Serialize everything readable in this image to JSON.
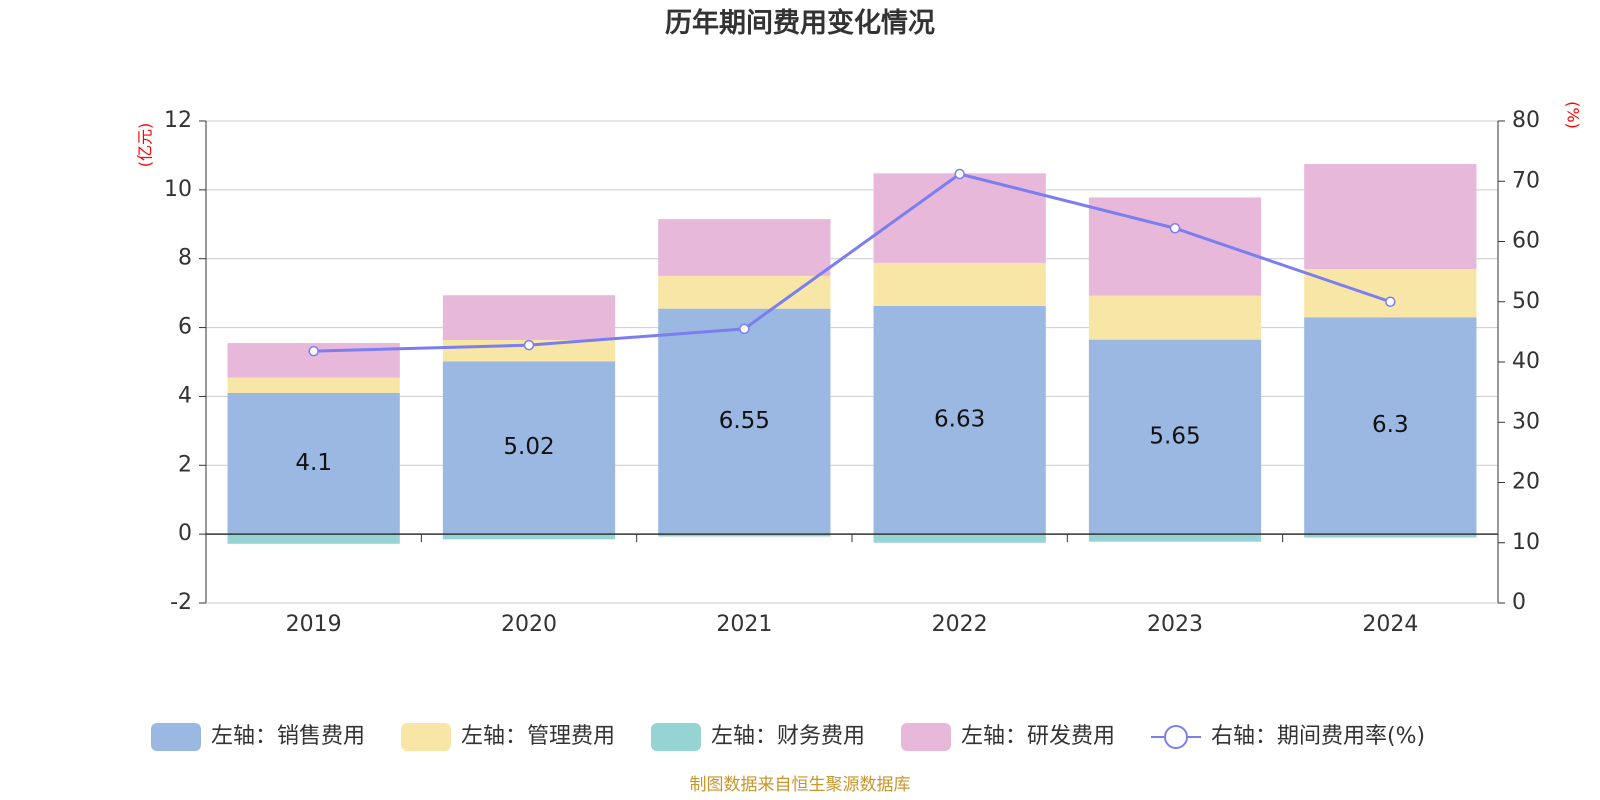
{
  "chart_data": {
    "type": "bar",
    "stacked": true,
    "title": "历年期间费用变化情况",
    "left_axis": {
      "unit": "(亿元)",
      "ylim": [
        -2,
        12
      ],
      "ticks": [
        -2,
        0,
        2,
        4,
        6,
        8,
        10,
        12
      ]
    },
    "right_axis": {
      "unit": "(%)",
      "ylim": [
        0,
        80
      ],
      "ticks": [
        0,
        10,
        20,
        30,
        40,
        50,
        60,
        70,
        80
      ]
    },
    "categories": [
      "2019",
      "2020",
      "2021",
      "2022",
      "2023",
      "2024"
    ],
    "series": [
      {
        "name": "左轴：销售费用",
        "axis": "left",
        "color": "#9bb8e2",
        "values": [
          4.1,
          5.02,
          6.55,
          6.63,
          5.65,
          6.3
        ],
        "labels": [
          "4.1",
          "5.02",
          "6.55",
          "6.63",
          "5.65",
          "6.3"
        ]
      },
      {
        "name": "左轴：管理费用",
        "axis": "left",
        "color": "#f8e6a6",
        "values": [
          0.45,
          0.62,
          0.95,
          1.25,
          1.28,
          1.4
        ]
      },
      {
        "name": "左轴：财务费用",
        "axis": "left",
        "color": "#96d4d4",
        "values": [
          -0.28,
          -0.15,
          -0.07,
          -0.25,
          -0.22,
          -0.1
        ]
      },
      {
        "name": "左轴：研发费用",
        "axis": "left",
        "color": "#e8b8da",
        "values": [
          1.0,
          1.3,
          1.65,
          2.6,
          2.85,
          3.05
        ]
      },
      {
        "name": "右轴：期间费用率(%)",
        "axis": "right",
        "type": "line",
        "color": "#7b7ef0",
        "values": [
          41.8,
          42.8,
          45.5,
          71.2,
          62.2,
          50.0
        ]
      }
    ],
    "grid": true,
    "legend_position": "bottom"
  },
  "source_note": "制图数据来自恒生聚源数据库"
}
